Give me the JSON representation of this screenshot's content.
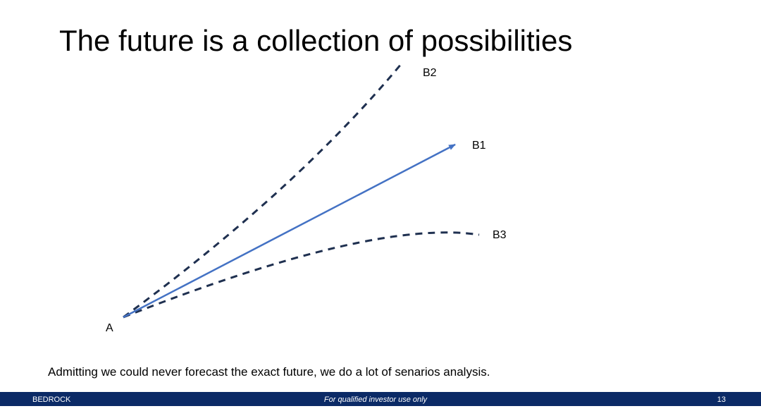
{
  "title": "The future is a collection of possibilities",
  "nodes": [
    {
      "label": "A"
    },
    {
      "label": "B1"
    },
    {
      "label": "B2"
    },
    {
      "label": "B3"
    }
  ],
  "caption": "Admitting we could never forecast the exact future, we do a lot of senarios analysis.",
  "footer": {
    "left": "BEDROCK",
    "center": "For qualified investor use only",
    "page": "13"
  }
}
